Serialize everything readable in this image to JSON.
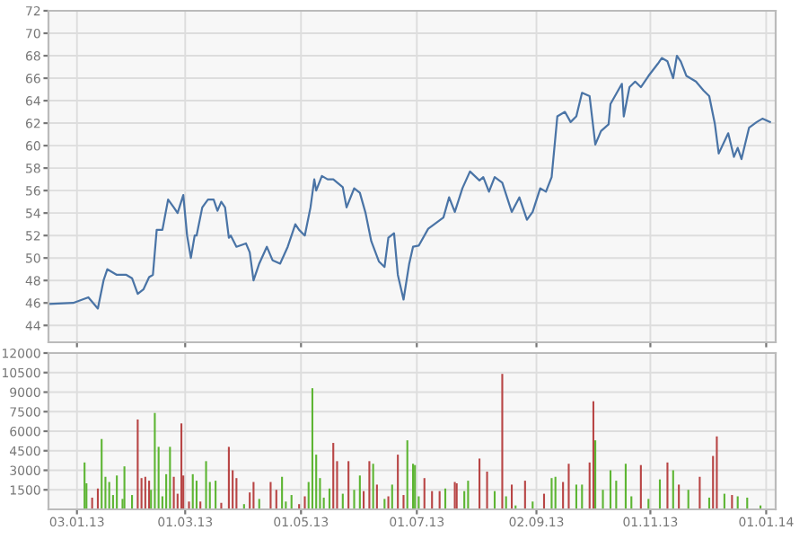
{
  "chart_data": [
    {
      "type": "line",
      "tick_labels": "y",
      "grid": true,
      "x": [
        "2012-12-19",
        "2013-01-01",
        "2013-01-09",
        "2013-01-14",
        "2013-01-17",
        "2013-01-19",
        "2013-01-24",
        "2013-01-29",
        "2013-02-01",
        "2013-02-04",
        "2013-02-07",
        "2013-02-10",
        "2013-02-12",
        "2013-02-14",
        "2013-02-17",
        "2013-02-20",
        "2013-02-23",
        "2013-02-25",
        "2013-02-28",
        "2013-03-02",
        "2013-03-04",
        "2013-03-06",
        "2013-03-07",
        "2013-03-10",
        "2013-03-13",
        "2013-03-16",
        "2013-03-18",
        "2013-03-20",
        "2013-03-22",
        "2013-03-24",
        "2013-03-25",
        "2013-03-28",
        "2013-04-02",
        "2013-04-04",
        "2013-04-06",
        "2013-04-09",
        "2013-04-13",
        "2013-04-16",
        "2013-04-20",
        "2013-04-24",
        "2013-04-28",
        "2013-04-30",
        "2013-05-03",
        "2013-05-06",
        "2013-05-08",
        "2013-05-09",
        "2013-05-12",
        "2013-05-15",
        "2013-05-18",
        "2013-05-23",
        "2013-05-25",
        "2013-05-29",
        "2013-06-01",
        "2013-06-04",
        "2013-06-07",
        "2013-06-11",
        "2013-06-14",
        "2013-06-16",
        "2013-06-19",
        "2013-06-21",
        "2013-06-24",
        "2013-06-27",
        "2013-06-29",
        "2013-07-02",
        "2013-07-07",
        "2013-07-11",
        "2013-07-15",
        "2013-07-18",
        "2013-07-21",
        "2013-07-25",
        "2013-07-29",
        "2013-08-03",
        "2013-08-05",
        "2013-08-08",
        "2013-08-11",
        "2013-08-15",
        "2013-08-20",
        "2013-08-24",
        "2013-08-28",
        "2013-08-31",
        "2013-09-04",
        "2013-09-07",
        "2013-09-10",
        "2013-09-13",
        "2013-09-17",
        "2013-09-20",
        "2013-09-23",
        "2013-09-26",
        "2013-09-30",
        "2013-10-03",
        "2013-10-06",
        "2013-10-10",
        "2013-10-11",
        "2013-10-17",
        "2013-10-18",
        "2013-10-21",
        "2013-10-24",
        "2013-10-27",
        "2013-10-31",
        "2013-11-05",
        "2013-11-07",
        "2013-11-10",
        "2013-11-13",
        "2013-11-15",
        "2013-11-17",
        "2013-11-20",
        "2013-11-25",
        "2013-11-29",
        "2013-12-02",
        "2013-12-05",
        "2013-12-07",
        "2013-12-12",
        "2013-12-15",
        "2013-12-17",
        "2013-12-19",
        "2013-12-23",
        "2013-12-27",
        "2013-12-30",
        "2014-01-03"
      ],
      "series": [
        {
          "color": "#4a74a6",
          "values": [
            45.9,
            46.0,
            46.5,
            45.5,
            48.0,
            49.0,
            48.5,
            48.5,
            48.2,
            46.8,
            47.2,
            48.3,
            48.5,
            52.5,
            52.5,
            55.2,
            54.5,
            54.0,
            55.6,
            52.0,
            50.0,
            52.0,
            52.0,
            54.5,
            55.2,
            55.2,
            54.2,
            55.0,
            54.5,
            51.8,
            52.0,
            51.0,
            51.3,
            50.5,
            48.0,
            49.5,
            51.0,
            49.8,
            49.5,
            51.0,
            53.0,
            52.5,
            52.0,
            54.5,
            57.0,
            56.0,
            57.3,
            57.0,
            57.0,
            56.3,
            54.5,
            56.2,
            55.8,
            54.0,
            51.5,
            49.7,
            49.2,
            51.8,
            52.2,
            48.5,
            46.3,
            49.5,
            51.0,
            51.1,
            52.6,
            53.1,
            53.6,
            55.4,
            54.1,
            56.2,
            57.7,
            56.9,
            57.2,
            55.9,
            57.2,
            56.7,
            54.1,
            55.4,
            53.4,
            54.1,
            56.2,
            55.9,
            57.2,
            62.6,
            63.0,
            62.1,
            62.6,
            64.7,
            64.4,
            60.1,
            61.3,
            61.9,
            63.7,
            65.5,
            62.6,
            65.2,
            65.7,
            65.2,
            66.2,
            67.3,
            67.8,
            67.5,
            66.0,
            68.0,
            67.5,
            66.2,
            65.7,
            64.9,
            64.4,
            61.9,
            59.3,
            61.1,
            59.0,
            59.8,
            58.8,
            61.6,
            62.1,
            62.4,
            62.1
          ]
        }
      ],
      "xlim": [
        "2012-12-19",
        "2014-01-06"
      ],
      "ylim": [
        42.5,
        72
      ],
      "yticks": [
        44,
        46,
        48,
        50,
        52,
        54,
        56,
        58,
        60,
        62,
        64,
        66,
        68,
        70,
        72
      ],
      "xticks": [
        {
          "value": "2013-01-03",
          "label": null
        },
        {
          "value": "2013-03-01",
          "label": null
        },
        {
          "value": "2013-05-01",
          "label": null
        },
        {
          "value": "2013-07-01",
          "label": null
        },
        {
          "value": "2013-09-02",
          "label": null
        },
        {
          "value": "2013-11-01",
          "label": null
        },
        {
          "value": "2014-01-01",
          "label": null
        }
      ]
    },
    {
      "type": "bar",
      "grid": true,
      "x": [
        "2013-01-07",
        "2013-01-08",
        "2013-01-11",
        "2013-01-14",
        "2013-01-16",
        "2013-01-18",
        "2013-01-20",
        "2013-01-22",
        "2013-01-24",
        "2013-01-27",
        "2013-01-28",
        "2013-02-01",
        "2013-02-04",
        "2013-02-06",
        "2013-02-08",
        "2013-02-10",
        "2013-02-11",
        "2013-02-13",
        "2013-02-15",
        "2013-02-17",
        "2013-02-19",
        "2013-02-21",
        "2013-02-23",
        "2013-02-25",
        "2013-02-27",
        "2013-02-28",
        "2013-03-03",
        "2013-03-05",
        "2013-03-07",
        "2013-03-09",
        "2013-03-12",
        "2013-03-14",
        "2013-03-17",
        "2013-03-20",
        "2013-03-24",
        "2013-03-26",
        "2013-03-28",
        "2013-04-01",
        "2013-04-04",
        "2013-04-06",
        "2013-04-09",
        "2013-04-15",
        "2013-04-18",
        "2013-04-21",
        "2013-04-23",
        "2013-04-26",
        "2013-04-30",
        "2013-05-03",
        "2013-05-05",
        "2013-05-07",
        "2013-05-09",
        "2013-05-11",
        "2013-05-13",
        "2013-05-16",
        "2013-05-18",
        "2013-05-20",
        "2013-05-23",
        "2013-05-26",
        "2013-05-29",
        "2013-06-01",
        "2013-06-03",
        "2013-06-06",
        "2013-06-08",
        "2013-06-10",
        "2013-06-14",
        "2013-06-16",
        "2013-06-18",
        "2013-06-21",
        "2013-06-24",
        "2013-06-26",
        "2013-06-29",
        "2013-06-30",
        "2013-07-02",
        "2013-07-05",
        "2013-07-09",
        "2013-07-13",
        "2013-07-16",
        "2013-07-21",
        "2013-07-22",
        "2013-07-26",
        "2013-07-28",
        "2013-08-03",
        "2013-08-07",
        "2013-08-11",
        "2013-08-15",
        "2013-08-17",
        "2013-08-20",
        "2013-08-22",
        "2013-08-27",
        "2013-08-31",
        "2013-09-06",
        "2013-09-10",
        "2013-09-12",
        "2013-09-16",
        "2013-09-19",
        "2013-09-23",
        "2013-09-26",
        "2013-09-30",
        "2013-10-02",
        "2013-10-03",
        "2013-10-07",
        "2013-10-11",
        "2013-10-14",
        "2013-10-19",
        "2013-10-22",
        "2013-10-27",
        "2013-10-31",
        "2013-11-06",
        "2013-11-10",
        "2013-11-13",
        "2013-11-16",
        "2013-11-21",
        "2013-11-27",
        "2013-12-02",
        "2013-12-04",
        "2013-12-06",
        "2013-12-10",
        "2013-12-14",
        "2013-12-17",
        "2013-12-22",
        "2013-12-29"
      ],
      "values": [
        3600,
        2000,
        900,
        1600,
        5400,
        2500,
        2100,
        1100,
        2600,
        800,
        3300,
        1100,
        6900,
        2400,
        2500,
        2200,
        1500,
        7400,
        4800,
        1000,
        2700,
        4800,
        2500,
        1200,
        6600,
        2600,
        600,
        2700,
        2200,
        600,
        3700,
        2100,
        2200,
        500,
        4800,
        3000,
        2400,
        400,
        1300,
        2100,
        800,
        2100,
        1500,
        2500,
        600,
        1100,
        400,
        1000,
        2100,
        9300,
        4200,
        2400,
        900,
        1600,
        5100,
        3700,
        1200,
        3700,
        1500,
        2600,
        1400,
        3700,
        3500,
        1900,
        800,
        1000,
        1900,
        4200,
        1100,
        5300,
        3500,
        3400,
        1000,
        2400,
        1400,
        1400,
        1600,
        2100,
        2000,
        1400,
        2200,
        3900,
        2900,
        1400,
        10400,
        1000,
        1900,
        300,
        2200,
        600,
        1200,
        2400,
        2500,
        2100,
        3500,
        1900,
        1900,
        3600,
        8300,
        5300,
        1500,
        3000,
        2200,
        3500,
        1000,
        3400,
        800,
        2300,
        3600,
        3000,
        1900,
        1500,
        2500,
        900,
        4100,
        5600,
        1200,
        1100,
        1000,
        900,
        300
      ],
      "colors": [
        "#5db533",
        "#5db533",
        "#b84545",
        "#b84545",
        "#5db533",
        "#5db533",
        "#5db533",
        "#5db533",
        "#5db533",
        "#5db533",
        "#5db533",
        "#5db533",
        "#b84545",
        "#b84545",
        "#b84545",
        "#b84545",
        "#5db533",
        "#5db533",
        "#5db533",
        "#5db533",
        "#5db533",
        "#5db533",
        "#b84545",
        "#b84545",
        "#b84545",
        "#b84545",
        "#b84545",
        "#5db533",
        "#5db533",
        "#b84545",
        "#5db533",
        "#5db533",
        "#5db533",
        "#b84545",
        "#b84545",
        "#b84545",
        "#b84545",
        "#5db533",
        "#b84545",
        "#b84545",
        "#5db533",
        "#b84545",
        "#b84545",
        "#5db533",
        "#5db533",
        "#5db533",
        "#b84545",
        "#b84545",
        "#5db533",
        "#5db533",
        "#5db533",
        "#5db533",
        "#5db533",
        "#5db533",
        "#b84545",
        "#b84545",
        "#5db533",
        "#b84545",
        "#5db533",
        "#5db533",
        "#b84545",
        "#b84545",
        "#5db533",
        "#b84545",
        "#5db533",
        "#b84545",
        "#5db533",
        "#b84545",
        "#b84545",
        "#5db533",
        "#5db533",
        "#5db533",
        "#5db533",
        "#b84545",
        "#b84545",
        "#b84545",
        "#5db533",
        "#b84545",
        "#b84545",
        "#5db533",
        "#5db533",
        "#b84545",
        "#b84545",
        "#5db533",
        "#b84545",
        "#5db533",
        "#b84545",
        "#5db533",
        "#b84545",
        "#5db533",
        "#b84545",
        "#5db533",
        "#5db533",
        "#b84545",
        "#b84545",
        "#5db533",
        "#5db533",
        "#b84545",
        "#b84545",
        "#5db533",
        "#5db533",
        "#5db533",
        "#5db533",
        "#5db533",
        "#5db533",
        "#b84545",
        "#5db533",
        "#5db533",
        "#b84545",
        "#5db533",
        "#b84545",
        "#5db533",
        "#b84545",
        "#5db533",
        "#b84545",
        "#b84545",
        "#5db533",
        "#b84545",
        "#5db533",
        "#5db533",
        "#5db533"
      ],
      "xlim": [
        "2012-12-19",
        "2014-01-06"
      ],
      "ylim": [
        0,
        12000
      ],
      "yticks": [
        1500,
        3000,
        4500,
        6000,
        7500,
        9000,
        10500,
        12000
      ],
      "xticks": [
        {
          "value": "2013-01-03",
          "label": "03.01.13"
        },
        {
          "value": "2013-03-01",
          "label": "01.03.13"
        },
        {
          "value": "2013-05-01",
          "label": "01.05.13"
        },
        {
          "value": "2013-07-01",
          "label": "01.07.13"
        },
        {
          "value": "2013-09-02",
          "label": "02.09.13"
        },
        {
          "value": "2013-11-01",
          "label": "01.11.13"
        },
        {
          "value": "2014-01-01",
          "label": "01.01.14"
        }
      ]
    }
  ]
}
